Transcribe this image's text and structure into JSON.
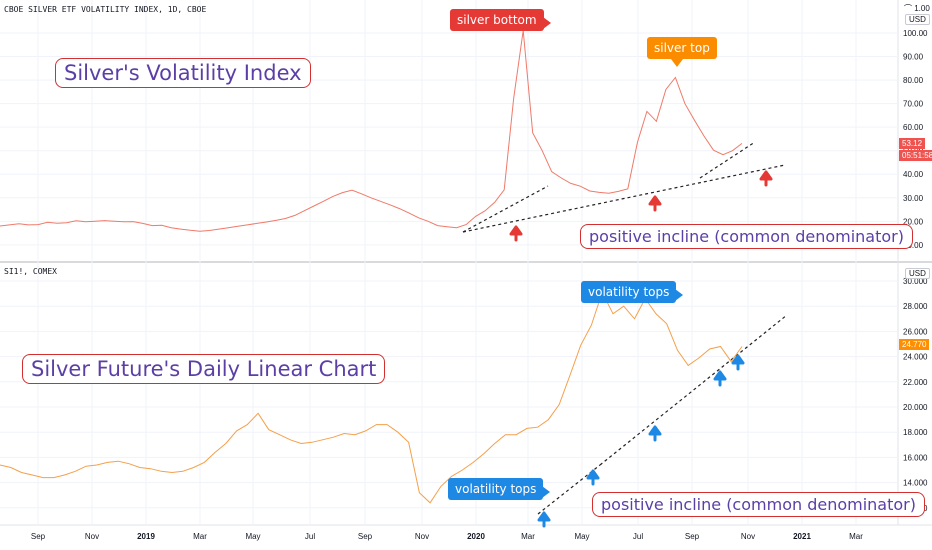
{
  "top": {
    "title": "CBOE SILVER ETF VOLATILITY INDEX, 1D, CBOE",
    "currency": "USD",
    "axis_ticks": [
      "100.00",
      "90.00",
      "80.00",
      "70.00",
      "60.00",
      "50.00",
      "40.00",
      "30.00",
      "20.00",
      "10.00"
    ],
    "axis_top_label": "1.00",
    "price_tag": "53.12",
    "time_tag": "05:51:58",
    "label": "Silver's Volatility Index",
    "callout_bottom": "silver bottom",
    "callout_top": "silver top",
    "incline_label": "positive incline (common denominator)"
  },
  "bottom": {
    "title": "SI1!, COMEX",
    "currency": "USD",
    "axis_ticks": [
      "30.000",
      "28.000",
      "26.000",
      "24.000",
      "22.000",
      "20.000",
      "18.000",
      "16.000",
      "14.000",
      "12.000"
    ],
    "price_tag": "24.770",
    "label": "Silver Future's Daily Linear Chart",
    "callout_tops_top": "volatility tops",
    "callout_tops_bottom": "volatility tops",
    "incline_label": "positive incline (common denominator)"
  },
  "x_axis": [
    "Sep",
    "Nov",
    "2019",
    "Mar",
    "May",
    "Jul",
    "Sep",
    "Nov",
    "2020",
    "Mar",
    "May",
    "Jul",
    "Sep",
    "Nov",
    "2021",
    "Mar"
  ],
  "colors": {
    "vix_line": "#ef7a6a",
    "silver_line": "#f4a04a",
    "red_arrow": "#e53935",
    "blue_arrow": "#1e88e5",
    "callout_red": "#e53935",
    "callout_orange": "#fb8c00",
    "callout_blue": "#1e88e5",
    "label_border": "#d32f2f",
    "label_text": "#5b3fa6"
  },
  "chart_data": [
    {
      "type": "line",
      "title": "CBOE SILVER ETF VOLATILITY INDEX, 1D, CBOE",
      "ylim": [
        0,
        102
      ],
      "series": [
        {
          "values": [
            18,
            18.5,
            19,
            18.5,
            18.6,
            19.6,
            19.2,
            19.4,
            20.2,
            19.8,
            20,
            20.3,
            20,
            19.8,
            19.9,
            19.1,
            18.2,
            18.3,
            17.3,
            16.7,
            16.2,
            15.8,
            16.1,
            16.7,
            17.3,
            17.9,
            18.5,
            19.1,
            19.7,
            20.4,
            21.2,
            22.5,
            24.5,
            26.5,
            28.5,
            30.6,
            32.2,
            33.2,
            31.7,
            30,
            28.5,
            27,
            25.4,
            23.5,
            21.5,
            20,
            18.2,
            17.7,
            17.3,
            18.6,
            22.1,
            24.5,
            28.1,
            33.4,
            72.4,
            101,
            57.6,
            50,
            41.1,
            38.4,
            36.1,
            34.9,
            32.9,
            32.3,
            31.9,
            32.7,
            33.8,
            53.5,
            66.7,
            62.5,
            76,
            81.1,
            70,
            63,
            56.3,
            50.2,
            48.3,
            50,
            53.1
          ]
        }
      ]
    },
    {
      "type": "line",
      "title": "SI1!, COMEX",
      "ylim": [
        11,
        30.5
      ],
      "series": [
        {
          "values": [
            15.4,
            15.2,
            14.8,
            14.6,
            14.4,
            14.4,
            14.6,
            14.9,
            15.3,
            15.4,
            15.6,
            15.7,
            15.5,
            15.2,
            15.1,
            14.9,
            14.8,
            14.9,
            15.2,
            15.6,
            16.4,
            17.1,
            18.1,
            18.6,
            19.5,
            18.2,
            17.8,
            17.4,
            17.1,
            17.2,
            17.4,
            17.6,
            17.9,
            17.8,
            18.1,
            18.6,
            18.6,
            18,
            17.2,
            13.2,
            12.4,
            13.7,
            14.5,
            15,
            15.6,
            16.3,
            17.1,
            17.8,
            17.8,
            18.3,
            18.4,
            19,
            20.2,
            22.5,
            24.9,
            26.5,
            29.1,
            27.4,
            28,
            27,
            28.6,
            27.4,
            26.6,
            24.5,
            23.3,
            23.9,
            24.6,
            24.8,
            23.6,
            24.8
          ]
        }
      ]
    }
  ]
}
